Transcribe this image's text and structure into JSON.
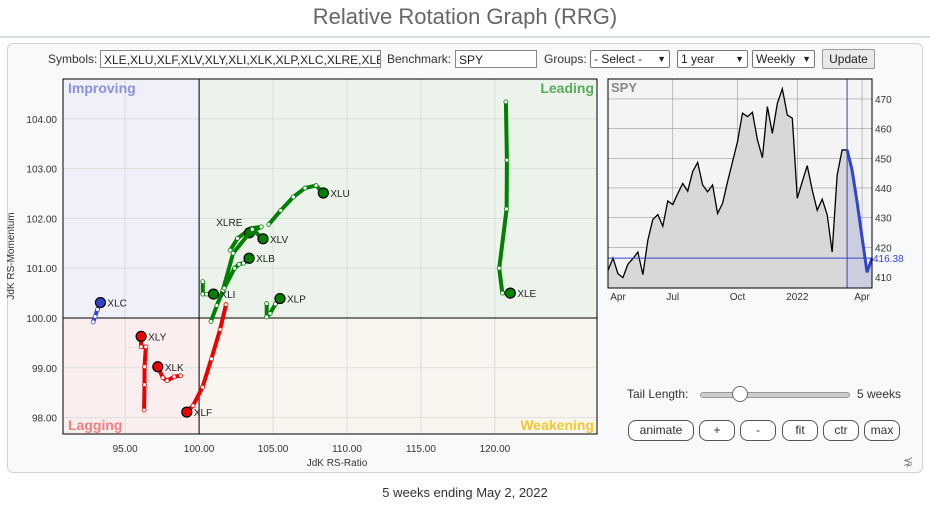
{
  "title": "Relative Rotation Graph (RRG)",
  "controls": {
    "symbols_label": "Symbols:",
    "symbols_value": "XLE,XLU,XLF,XLV,XLY,XLI,XLK,XLP,XLC,XLRE,XLB",
    "benchmark_label": "Benchmark:",
    "benchmark_value": "SPY",
    "groups_label": "Groups:",
    "groups_value": "- Select -",
    "period_value": "1 year",
    "frequency_value": "Weekly",
    "update_label": "Update"
  },
  "rrg": {
    "quadrants": {
      "improving": "Improving",
      "leading": "Leading",
      "lagging": "Lagging",
      "weakening": "Weakening"
    },
    "quadrant_colors": {
      "improving": "#8a92e0",
      "leading": "#5aaa5a",
      "lagging": "#f08080",
      "weakening": "#f0c830"
    },
    "quadrant_fills": {
      "improving": "#eff0fa",
      "leading": "#ebf3eb",
      "lagging": "#fbeeee",
      "weakening": "#f8f6ef"
    }
  },
  "chart_data": [
    {
      "type": "scatter",
      "title": "",
      "xlabel": "JdK RS-Ratio",
      "ylabel": "JdK RS-Momentum",
      "xlim": [
        90.8,
        126.9
      ],
      "ylim": [
        97.67,
        104.8
      ],
      "grid": true,
      "x_ticks": [
        "95.00",
        "100.00",
        "105.00",
        "110.00",
        "115.00",
        "120.00"
      ],
      "y_ticks": [
        "98.00",
        "99.00",
        "100.00",
        "101.00",
        "102.00",
        "103.00",
        "104.00"
      ],
      "series": [
        {
          "name": "XLE",
          "color": "#008000",
          "points": [
            [
              120.74,
              104.34
            ],
            [
              120.81,
              103.17
            ],
            [
              120.79,
              102.19
            ],
            [
              120.29,
              101.0
            ],
            [
              120.5,
              100.5
            ],
            [
              121.04,
              100.5
            ]
          ]
        },
        {
          "name": "XLU",
          "color": "#008000",
          "points": [
            [
              104.71,
              101.88
            ],
            [
              105.52,
              102.16
            ],
            [
              106.37,
              102.43
            ],
            [
              107.16,
              102.61
            ],
            [
              107.91,
              102.66
            ],
            [
              108.4,
              102.51
            ]
          ]
        },
        {
          "name": "XLRE",
          "color": "#008000",
          "points": [
            [
              102.1,
              101.36
            ],
            [
              102.6,
              101.6
            ],
            [
              103.5,
              101.8
            ],
            [
              104.2,
              101.83
            ],
            [
              103.4,
              101.71
            ]
          ]
        },
        {
          "name": "XLV",
          "color": "#008000",
          "points": [
            [
              100.8,
              99.93
            ],
            [
              101.2,
              100.25
            ],
            [
              101.6,
              100.55
            ],
            [
              102.3,
              101.3
            ],
            [
              103.6,
              101.78
            ],
            [
              104.32,
              101.59
            ]
          ]
        },
        {
          "name": "XLB",
          "color": "#008000",
          "points": [
            [
              101.7,
              100.6
            ],
            [
              102.4,
              101.0
            ],
            [
              102.7,
              101.08
            ],
            [
              103.0,
              101.1
            ],
            [
              103.38,
              101.2
            ]
          ]
        },
        {
          "name": "XLI",
          "color": "#008000",
          "points": [
            [
              100.25,
              100.73
            ],
            [
              100.25,
              100.48
            ],
            [
              100.5,
              100.48
            ],
            [
              100.97,
              100.48
            ]
          ]
        },
        {
          "name": "XLP",
          "color": "#008000",
          "points": [
            [
              104.57,
              100.29
            ],
            [
              104.57,
              100.02
            ],
            [
              104.8,
              100.09
            ],
            [
              105.16,
              100.28
            ],
            [
              105.47,
              100.39
            ]
          ]
        },
        {
          "name": "XLC",
          "color": "#3344cc",
          "points": [
            [
              92.84,
              99.92
            ],
            [
              92.97,
              100.03
            ],
            [
              93.13,
              100.17
            ],
            [
              93.33,
              100.31
            ]
          ]
        },
        {
          "name": "XLY",
          "color": "#ee0000",
          "points": [
            [
              96.28,
              98.15
            ],
            [
              96.31,
              98.66
            ],
            [
              96.31,
              99.02
            ],
            [
              96.4,
              99.42
            ],
            [
              96.08,
              99.42
            ],
            [
              96.08,
              99.63
            ]
          ]
        },
        {
          "name": "XLK",
          "color": "#ee0000",
          "points": [
            [
              98.74,
              98.84
            ],
            [
              98.31,
              98.82
            ],
            [
              97.84,
              98.74
            ],
            [
              97.55,
              98.8
            ],
            [
              97.21,
              99.02
            ]
          ]
        },
        {
          "name": "XLF",
          "color": "#ee0000",
          "points": [
            [
              101.82,
              100.27
            ],
            [
              101.42,
              99.77
            ],
            [
              100.83,
              99.18
            ],
            [
              100.23,
              98.61
            ],
            [
              99.59,
              98.24
            ],
            [
              99.17,
              98.11
            ]
          ]
        }
      ]
    },
    {
      "type": "area",
      "title": "SPY",
      "ylim": [
        406.3,
        476.7
      ],
      "grid": true,
      "x_ticks": [
        "Apr",
        "Jul",
        "Oct",
        "2022",
        "Apr"
      ],
      "y_ticks": [
        "410",
        "420",
        "430",
        "440",
        "450",
        "460",
        "470"
      ],
      "last_value": "416.38",
      "highlight_weeks": 5,
      "highlight_color": "#3344cc",
      "values": [
        412.2,
        416.4,
        411.1,
        409.8,
        414.3,
        416.2,
        418.4,
        410.8,
        422.4,
        429.4,
        431.0,
        427.1,
        435.6,
        434.4,
        438.1,
        441.5,
        438.9,
        445.5,
        448.6,
        441.0,
        438.7,
        441.0,
        431.4,
        434.8,
        442.1,
        448.8,
        455.6,
        465.2,
        464.0,
        465.5,
        456.2,
        450.2,
        467.4,
        458.4,
        468.5,
        473.4,
        464.6,
        463.5,
        436.5,
        442.1,
        447.5,
        439.3,
        432.5,
        436.2,
        431.0,
        418.4,
        444.3,
        452.8,
        452.8,
        446.0,
        435.3,
        423.4,
        411.6,
        416.38
      ]
    }
  ],
  "tail": {
    "label": "Tail Length:",
    "value_label": "5 weeks",
    "weeks": 5,
    "min": 1,
    "max": 26
  },
  "buttons": {
    "animate": "animate",
    "plus": "+",
    "minus": "-",
    "fit": "fit",
    "ctr": "ctr",
    "max": "max"
  },
  "footer": "5 weeks ending May 2, 2022"
}
